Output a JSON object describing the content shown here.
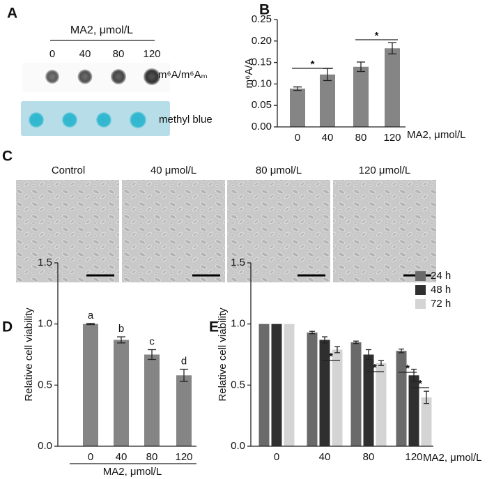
{
  "panels": {
    "A": {
      "letter": "A",
      "header": "MA2, μmol/L",
      "lanes": [
        "0",
        "40",
        "80",
        "120"
      ],
      "rows": [
        "m⁶A/m⁶Aₘ",
        "methyl blue"
      ]
    },
    "C": {
      "letter": "C",
      "images": [
        "Control",
        "40 μmol/L",
        "80 μmol/L",
        "120 μmol/L"
      ]
    }
  },
  "chart_data": [
    {
      "type": "bar",
      "panel": "B",
      "ylabel": "m⁶A/A",
      "xlabel": "MA2, μmol/L",
      "categories": [
        "0",
        "40",
        "80",
        "120"
      ],
      "values": [
        0.089,
        0.122,
        0.14,
        0.183
      ],
      "errors": [
        0.004,
        0.014,
        0.011,
        0.013
      ],
      "color": "#858585",
      "ylim": [
        0,
        0.25
      ],
      "yticks": [
        {
          "value": 0,
          "label": "0.00"
        },
        0.05,
        {
          "value": 0.1,
          "label": "0.10"
        },
        0.15,
        {
          "value": 0.2,
          "label": "0.20"
        },
        0.25
      ],
      "annotations": [
        "*",
        "*"
      ]
    },
    {
      "type": "bar",
      "panel": "D",
      "ylabel": "Relative cell viability",
      "xlabel": "MA2, μmol/L",
      "categories": [
        "0",
        "40",
        "80",
        "120"
      ],
      "values": [
        1.0,
        0.87,
        0.75,
        0.58
      ],
      "errors": [
        0.005,
        0.025,
        0.04,
        0.05
      ],
      "color": "#858585",
      "bar_labels": [
        "a",
        "b",
        "c",
        "d"
      ],
      "ylim": [
        0,
        1.5
      ],
      "yticks": [
        {
          "value": 0,
          "label": "0.0"
        },
        0.5,
        {
          "value": 1,
          "label": "1.0"
        },
        1.5
      ]
    },
    {
      "type": "grouped_bar",
      "panel": "E",
      "ylabel": "Relative cell viability",
      "xlabel": "MA2, μmol/L",
      "categories": [
        "0",
        "40",
        "80",
        "120"
      ],
      "series": [
        {
          "name": "24 h",
          "color": "#6a6a6a",
          "values": [
            1.0,
            0.93,
            0.85,
            0.78
          ],
          "errors": [
            0,
            0.01,
            0.01,
            0.015
          ]
        },
        {
          "name": "48 h",
          "color": "#2f2f2f",
          "values": [
            1.0,
            0.87,
            0.75,
            0.58
          ],
          "errors": [
            0,
            0.025,
            0.04,
            0.05
          ]
        },
        {
          "name": "72 h",
          "color": "#d4d4d4",
          "values": [
            1.0,
            0.79,
            0.68,
            0.4
          ],
          "errors": [
            0,
            0.025,
            0.02,
            0.05
          ]
        }
      ],
      "ylim": [
        0,
        1.5
      ],
      "yticks": [
        {
          "value": 0,
          "label": "0.0"
        },
        0.5,
        {
          "value": 1,
          "label": "1.0"
        },
        1.5
      ],
      "annotations": [
        "*",
        "*",
        "*",
        "*"
      ]
    }
  ]
}
